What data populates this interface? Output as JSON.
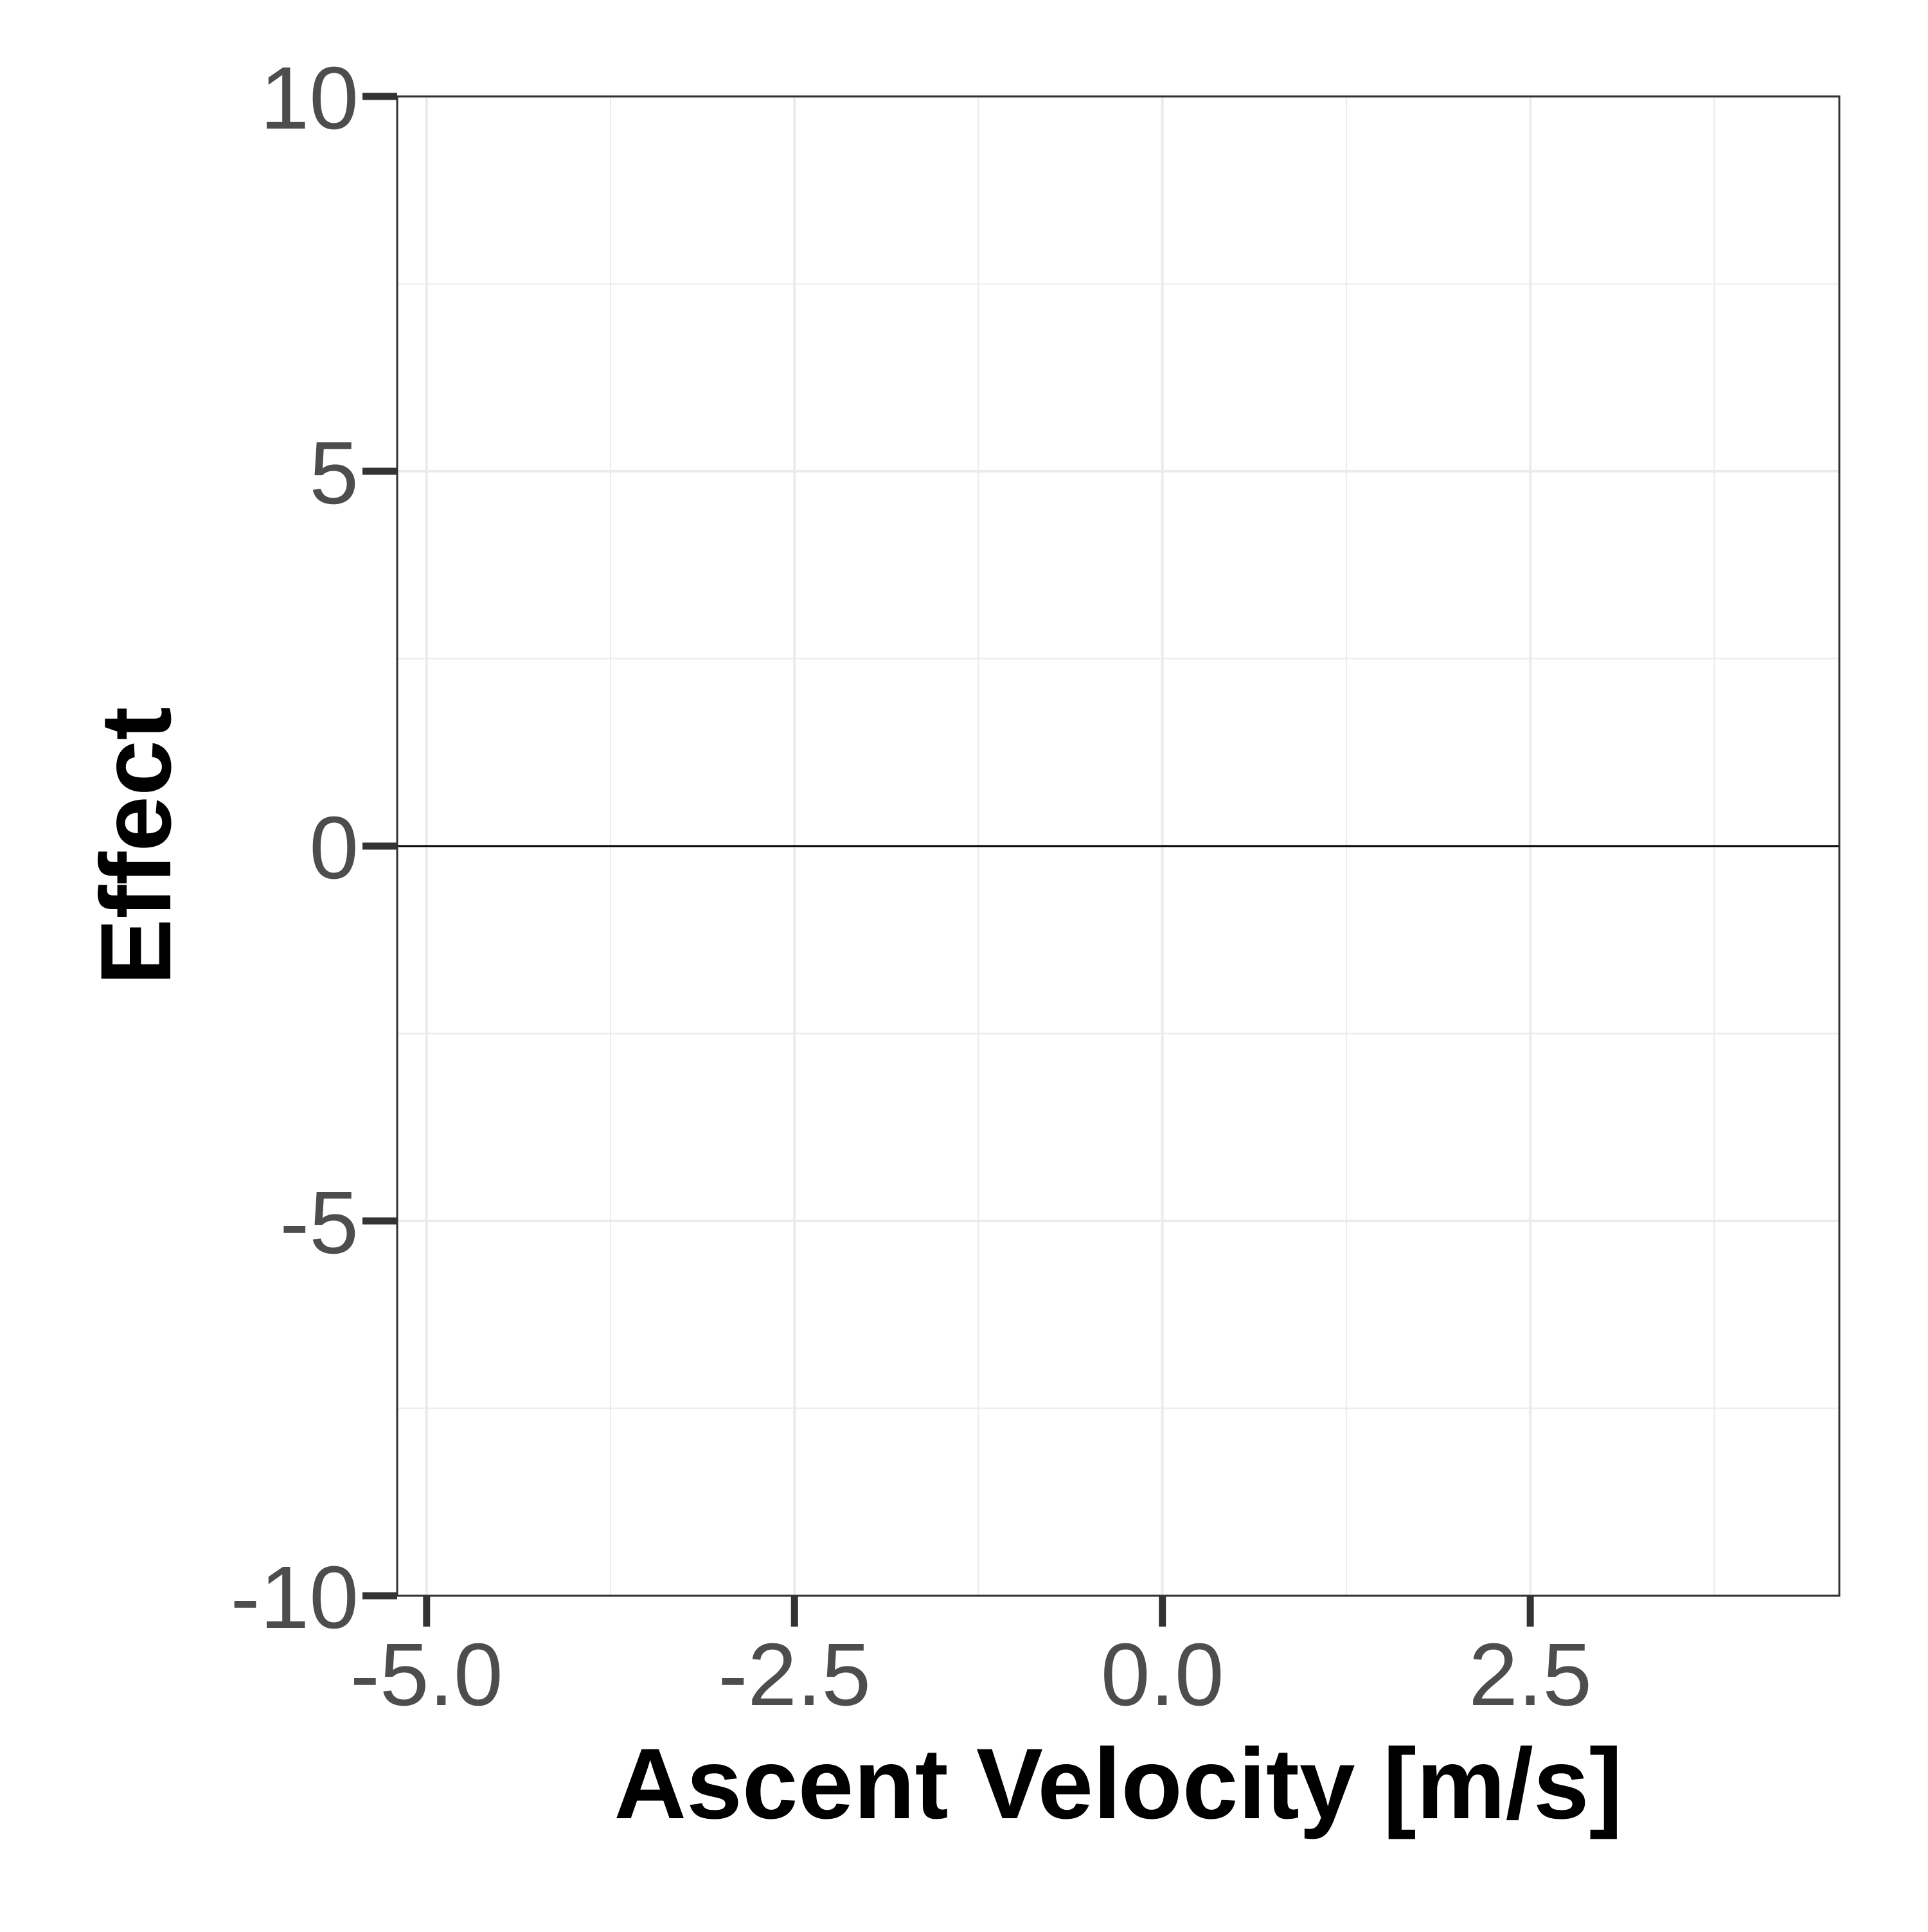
{
  "chart_data": {
    "type": "line",
    "title": "",
    "xlabel": "Ascent Velocity [m/s]",
    "ylabel": "Effect",
    "xlim": [
      -5.2,
      4.6
    ],
    "ylim": [
      -10,
      10
    ],
    "x_ticks": [
      -5.0,
      -2.5,
      0.0,
      2.5
    ],
    "x_tick_labels": [
      "-5.0",
      "-2.5",
      "0.0",
      "2.5"
    ],
    "x_minor": [
      -3.75,
      -1.25,
      1.25,
      3.75
    ],
    "y_ticks": [
      -10,
      -5,
      0,
      5,
      10
    ],
    "y_tick_labels": [
      "-10",
      "-5",
      "0",
      "5",
      "10"
    ],
    "y_minor": [
      -7.5,
      -2.5,
      2.5,
      7.5
    ],
    "reference_lines": [
      {
        "axis": "y",
        "value": 0
      }
    ],
    "series": [],
    "grid": true,
    "colors": {
      "grid": "#ebebeb",
      "border": "#333333",
      "tick_text": "#4d4d4d",
      "reference": "#000000"
    }
  }
}
